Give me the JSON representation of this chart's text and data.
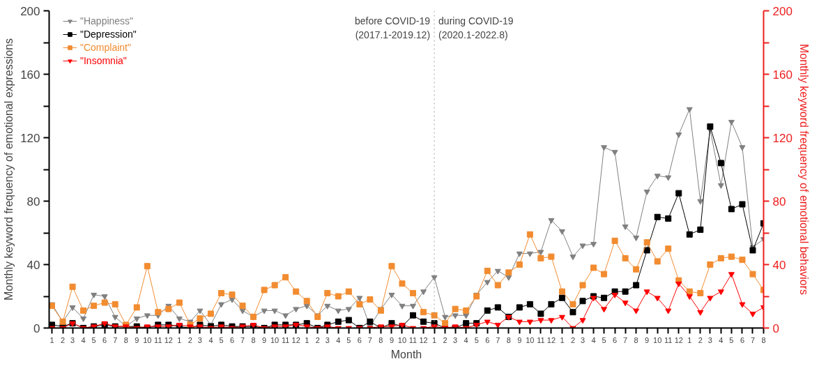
{
  "chart_data": {
    "type": "line",
    "xlabel": "Month",
    "ylabel": "Monthly keyword frequency of emotional expressions",
    "y2label": "Monthly keyword frequency of emotional behaviors",
    "x": [
      "2017-01",
      "2017-02",
      "2017-03",
      "2017-04",
      "2017-05",
      "2017-06",
      "2017-07",
      "2017-08",
      "2017-09",
      "2017-10",
      "2017-11",
      "2017-12",
      "2018-01",
      "2018-02",
      "2018-03",
      "2018-04",
      "2018-05",
      "2018-06",
      "2018-07",
      "2018-08",
      "2018-09",
      "2018-10",
      "2018-11",
      "2018-12",
      "2019-01",
      "2019-02",
      "2019-03",
      "2019-04",
      "2019-05",
      "2019-06",
      "2019-07",
      "2019-08",
      "2019-09",
      "2019-10",
      "2019-11",
      "2019-12",
      "2020-01",
      "2020-02",
      "2020-03",
      "2020-04",
      "2020-05",
      "2020-06",
      "2020-07",
      "2020-08",
      "2020-09",
      "2020-10",
      "2020-11",
      "2020-12",
      "2021-01",
      "2021-02",
      "2021-03",
      "2021-04",
      "2021-05",
      "2021-06",
      "2021-07",
      "2021-08",
      "2021-09",
      "2021-10",
      "2021-11",
      "2021-12",
      "2022-01",
      "2022-02",
      "2022-03",
      "2022-04",
      "2022-05",
      "2022-06",
      "2022-07",
      "2022-08"
    ],
    "xlim": [
      "2016-12-24",
      "2022-08-01"
    ],
    "xticks": [
      {
        "value": "2017-01",
        "label": "1"
      },
      {
        "value": "2017-02",
        "label": "2"
      },
      {
        "value": "2017-03",
        "label": "3"
      },
      {
        "value": "2017-04",
        "label": "4"
      },
      {
        "value": "2017-05",
        "label": "5"
      },
      {
        "value": "2017-06",
        "label": "6"
      },
      {
        "value": "2017-07",
        "label": "7"
      },
      {
        "value": "2017-08",
        "label": "8"
      },
      {
        "value": "2017-09",
        "label": "9"
      },
      {
        "value": "2017-10",
        "label": "10"
      },
      {
        "value": "2017-11",
        "label": "11"
      },
      {
        "value": "2017-12",
        "label": "12"
      },
      {
        "value": "2018-01",
        "label": "1"
      },
      {
        "value": "2018-02",
        "label": "2"
      },
      {
        "value": "2018-03",
        "label": "3"
      },
      {
        "value": "2018-04",
        "label": "4"
      },
      {
        "value": "2018-05",
        "label": "5"
      },
      {
        "value": "2018-06",
        "label": "6"
      },
      {
        "value": "2018-07",
        "label": "7"
      },
      {
        "value": "2018-08",
        "label": "8"
      },
      {
        "value": "2018-09",
        "label": "9"
      },
      {
        "value": "2018-10",
        "label": "10"
      },
      {
        "value": "2018-11",
        "label": "11"
      },
      {
        "value": "2018-12",
        "label": "12"
      },
      {
        "value": "2019-01",
        "label": "1"
      },
      {
        "value": "2019-02",
        "label": "2"
      },
      {
        "value": "2019-03",
        "label": "3"
      },
      {
        "value": "2019-04",
        "label": "4"
      },
      {
        "value": "2019-05",
        "label": "5"
      },
      {
        "value": "2019-06",
        "label": "6"
      },
      {
        "value": "2019-07",
        "label": "7"
      },
      {
        "value": "2019-08",
        "label": "8"
      },
      {
        "value": "2019-09",
        "label": "9"
      },
      {
        "value": "2019-10",
        "label": "10"
      },
      {
        "value": "2019-11",
        "label": "11"
      },
      {
        "value": "2019-12",
        "label": "12"
      },
      {
        "value": "2020-01",
        "label": "1"
      },
      {
        "value": "2020-02",
        "label": "2"
      },
      {
        "value": "2020-03",
        "label": "3"
      },
      {
        "value": "2020-04",
        "label": "4"
      },
      {
        "value": "2020-05",
        "label": "5"
      },
      {
        "value": "2020-06",
        "label": "6"
      },
      {
        "value": "2020-07",
        "label": "7"
      },
      {
        "value": "2020-08",
        "label": "8"
      },
      {
        "value": "2020-09",
        "label": "9"
      },
      {
        "value": "2020-10",
        "label": "10"
      },
      {
        "value": "2020-11",
        "label": "11"
      },
      {
        "value": "2020-12",
        "label": "12"
      },
      {
        "value": "2021-01",
        "label": "1"
      },
      {
        "value": "2021-02",
        "label": "2"
      },
      {
        "value": "2021-03",
        "label": "3"
      },
      {
        "value": "2021-04",
        "label": "4"
      },
      {
        "value": "2021-05",
        "label": "5"
      },
      {
        "value": "2021-06",
        "label": "6"
      },
      {
        "value": "2021-07",
        "label": "7"
      },
      {
        "value": "2021-08",
        "label": "8"
      },
      {
        "value": "2021-09",
        "label": "9"
      },
      {
        "value": "2021-10",
        "label": "10"
      },
      {
        "value": "2021-11",
        "label": "11"
      },
      {
        "value": "2021-12",
        "label": "12"
      },
      {
        "value": "2022-01",
        "label": "1"
      },
      {
        "value": "2022-02",
        "label": "2"
      },
      {
        "value": "2022-03",
        "label": "3"
      },
      {
        "value": "2022-04",
        "label": "4"
      },
      {
        "value": "2022-05",
        "label": "5"
      },
      {
        "value": "2022-06",
        "label": "6"
      },
      {
        "value": "2022-07",
        "label": "7"
      },
      {
        "value": "2022-08",
        "label": "8"
      }
    ],
    "ylim": [
      0,
      200
    ],
    "yticks": [
      0,
      {
        "value": 20,
        "label": null
      },
      40,
      {
        "value": 60,
        "label": null
      },
      80,
      {
        "value": 100,
        "label": null
      },
      120,
      {
        "value": 140,
        "label": null
      },
      160,
      {
        "value": 180,
        "label": null
      },
      200
    ],
    "y2lim": [
      0,
      200
    ],
    "y2ticks": [
      0,
      {
        "value": 20,
        "label": null
      },
      40,
      {
        "value": 60,
        "label": null
      },
      80,
      {
        "value": 100,
        "label": null
      },
      120,
      {
        "value": 140,
        "label": null
      },
      160,
      {
        "value": 180,
        "label": null
      },
      200
    ],
    "grid": false,
    "legend": "top left",
    "line_style": "solid",
    "series": [
      {
        "name": "\"Happiness\"",
        "color": "#808080",
        "marker": "triangle",
        "values": [
          15,
          4,
          13,
          6,
          21,
          20,
          7,
          1,
          6,
          8,
          8,
          14,
          6,
          4,
          11,
          2,
          15,
          18,
          11,
          7,
          11,
          11,
          8,
          12,
          14,
          8,
          14,
          11,
          12,
          19,
          1,
          12,
          21,
          14,
          14,
          23,
          32,
          7,
          8,
          8,
          21,
          29,
          36,
          32,
          47,
          47,
          48,
          68,
          61,
          45,
          52,
          53,
          114,
          111,
          64,
          57,
          86,
          96,
          95,
          122,
          138,
          80,
          125,
          90,
          130,
          114,
          51,
          56
        ]
      },
      {
        "name": "\"Depression\"",
        "color": "#000000",
        "marker": "square",
        "values": [
          2,
          1,
          3,
          0,
          1,
          2,
          1,
          1,
          1,
          0,
          2,
          2,
          1,
          0,
          2,
          1,
          2,
          1,
          1,
          1,
          0,
          2,
          2,
          2,
          3,
          0,
          2,
          4,
          5,
          0,
          4,
          0,
          3,
          1,
          8,
          4,
          3,
          0,
          0,
          3,
          3,
          11,
          13,
          7,
          13,
          15,
          9,
          15,
          19,
          10,
          17,
          20,
          19,
          23,
          23,
          27,
          49,
          70,
          69,
          85,
          59,
          62,
          127,
          104,
          75,
          78,
          49,
          66
        ]
      },
      {
        "name": "\"Complaint\"",
        "color": "#f28c30",
        "marker": "square",
        "values": [
          14,
          4,
          26,
          11,
          14,
          16,
          15,
          2,
          13,
          39,
          10,
          12,
          16,
          2,
          6,
          9,
          22,
          21,
          14,
          7,
          24,
          27,
          32,
          23,
          17,
          7,
          22,
          20,
          23,
          15,
          18,
          11,
          39,
          28,
          22,
          10,
          8,
          3,
          12,
          11,
          20,
          36,
          27,
          35,
          40,
          59,
          44,
          45,
          23,
          15,
          27,
          38,
          34,
          55,
          44,
          37,
          54,
          42,
          50,
          30,
          23,
          22,
          40,
          44,
          45,
          43,
          34,
          24
        ]
      },
      {
        "name": "\"Insomnia\"",
        "color": "#ff0000",
        "marker": "triangle",
        "axis": "y2",
        "values": [
          0,
          0,
          3,
          0,
          1,
          3,
          1,
          1,
          0,
          1,
          1,
          1,
          2,
          1,
          1,
          0,
          1,
          0,
          1,
          2,
          0,
          1,
          1,
          2,
          1,
          0,
          1,
          0,
          0,
          0,
          0,
          1,
          1,
          2,
          0,
          0,
          1,
          0,
          1,
          0,
          2,
          4,
          2,
          7,
          4,
          4,
          5,
          5,
          7,
          0,
          5,
          19,
          12,
          21,
          16,
          11,
          23,
          19,
          11,
          28,
          20,
          10,
          19,
          23,
          34,
          15,
          9,
          13
        ]
      }
    ],
    "ref_lines": [
      {
        "axis": "x",
        "value": "2020-01",
        "color": "#a0a0a0",
        "line_style": "dotted"
      }
    ],
    "annotations": [
      "before COVID-19\n(2017.1-2019.12)",
      "during COVID-19\n(2020.1-2022.8)"
    ]
  }
}
